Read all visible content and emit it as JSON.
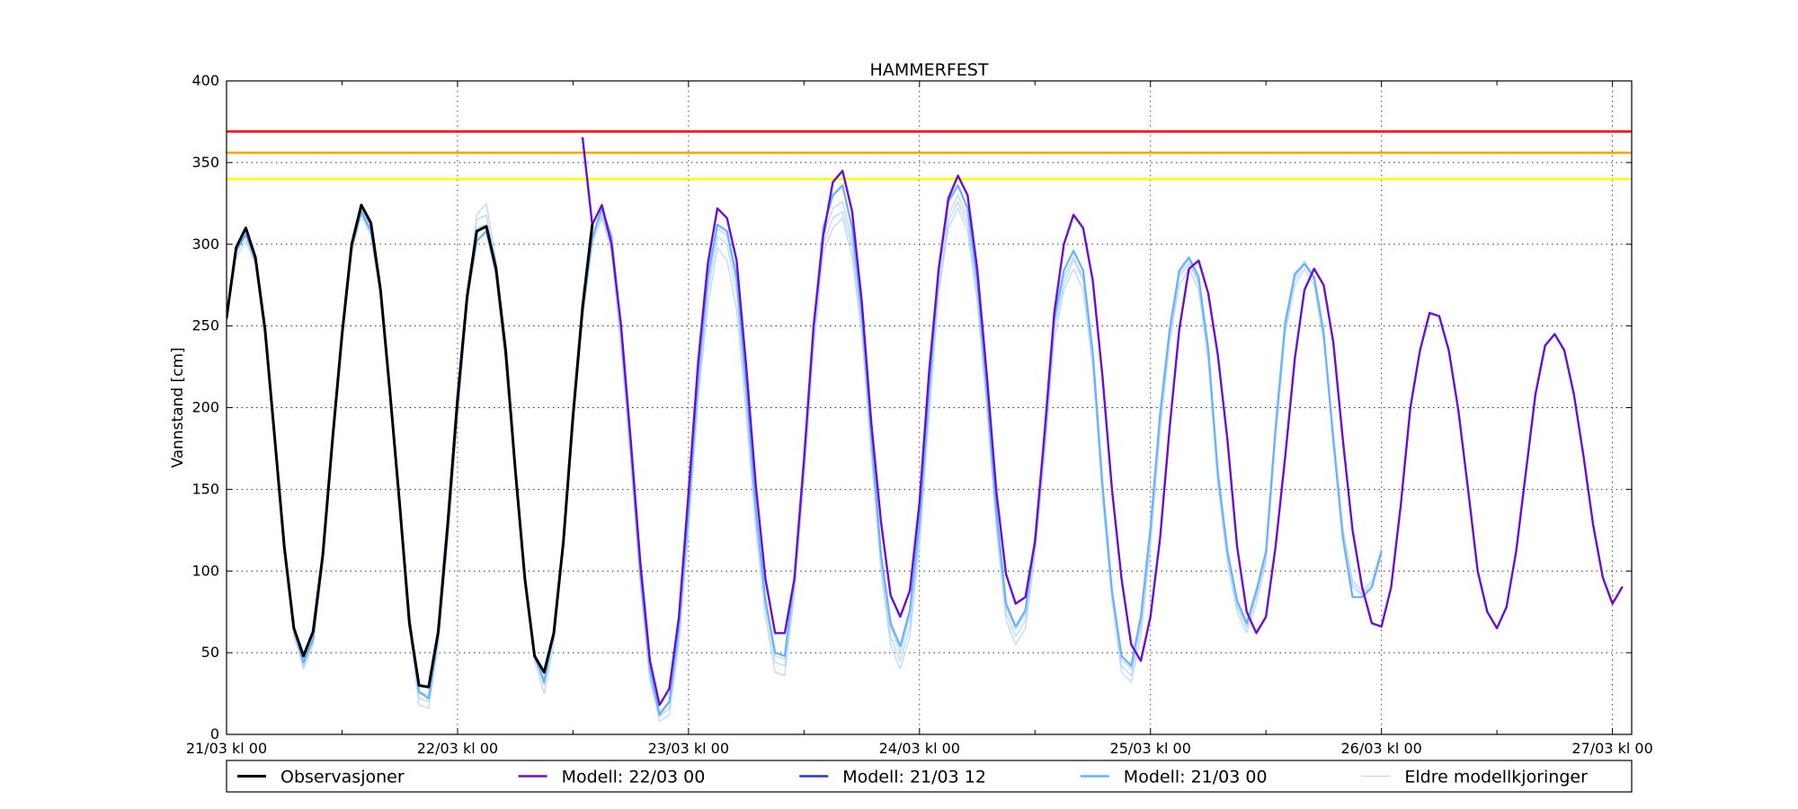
{
  "chart_data": {
    "type": "line",
    "title": "HAMMERFEST",
    "xlabel": "",
    "ylabel": "Vannstand [cm]",
    "ylim": [
      0,
      400
    ],
    "xlim_hours": [
      0,
      146
    ],
    "y_ticks": [
      0,
      50,
      100,
      150,
      200,
      250,
      300,
      350,
      400
    ],
    "x_ticks": [
      {
        "hour": 0,
        "label": "21/03 kl 00"
      },
      {
        "hour": 24,
        "label": "22/03 kl 00"
      },
      {
        "hour": 48,
        "label": "23/03 kl 00"
      },
      {
        "hour": 72,
        "label": "24/03 kl 00"
      },
      {
        "hour": 96,
        "label": "25/03 kl 00"
      },
      {
        "hour": 120,
        "label": "26/03 kl 00"
      },
      {
        "hour": 144,
        "label": "27/03 kl 00"
      }
    ],
    "x_minor_ticks_hours": [
      12,
      36,
      60,
      84,
      108,
      132
    ],
    "grid": true,
    "legend_position": "bottom",
    "thresholds": [
      {
        "value": 369,
        "color": "#ff0000"
      },
      {
        "value": 356,
        "color": "#ffa500"
      },
      {
        "value": 340,
        "color": "#ffff00"
      }
    ],
    "series": [
      {
        "name": "Eldre modellkjoringer",
        "color": "#bbd8f8",
        "width": 1.3,
        "x_start": 0,
        "x_step": 1,
        "values": [
          258,
          295,
          305,
          290,
          245,
          180,
          112,
          62,
          40,
          55,
          105,
          175,
          240,
          295,
          318,
          305,
          268,
          205,
          135,
          65,
          18,
          16,
          55,
          120,
          195,
          262,
          318,
          325,
          290,
          235,
          165,
          98,
          45,
          25,
          55,
          115,
          190,
          255,
          300,
          318,
          300,
          240,
          170,
          95,
          35,
          8,
          12,
          55,
          125,
          205,
          262,
          298,
          290,
          260,
          195,
          125,
          72,
          38,
          36,
          85,
          155,
          235,
          295,
          310,
          316,
          292,
          245,
          170,
          100,
          55,
          40,
          60,
          115,
          195,
          270,
          310,
          322,
          308,
          265,
          200,
          125,
          70,
          55,
          65,
          110,
          170,
          242,
          272,
          285,
          272,
          225,
          145,
          82,
          38,
          32,
          60,
          115,
          185,
          240,
          275,
          285,
          272,
          228,
          152,
          105,
          75,
          62,
          80,
          105,
          180,
          245,
          275,
          285,
          275,
          240,
          180,
          120,
          90,
          85,
          90,
          110,
          null,
          null,
          null,
          null,
          null,
          null,
          null,
          null,
          null,
          null,
          null,
          null,
          null,
          null,
          null,
          null,
          null,
          null,
          null,
          null,
          null,
          null,
          null,
          null,
          null,
          null
        ]
      },
      {
        "name": "Eldre modellkjoringer",
        "color": "#bbd8f8",
        "width": 1.3,
        "x_start": 0,
        "x_step": 1,
        "values": [
          255,
          292,
          302,
          288,
          243,
          178,
          110,
          60,
          42,
          58,
          108,
          178,
          243,
          298,
          320,
          308,
          270,
          207,
          138,
          70,
          22,
          20,
          58,
          123,
          198,
          266,
          315,
          318,
          286,
          232,
          163,
          96,
          48,
          30,
          60,
          118,
          192,
          258,
          302,
          316,
          296,
          236,
          166,
          92,
          32,
          11,
          16,
          60,
          130,
          210,
          270,
          305,
          300,
          270,
          205,
          132,
          78,
          44,
          42,
          90,
          160,
          240,
          300,
          316,
          320,
          298,
          250,
          176,
          104,
          60,
          45,
          66,
          122,
          200,
          274,
          314,
          326,
          312,
          270,
          204,
          130,
          74,
          60,
          70,
          115,
          176,
          248,
          276,
          290,
          278,
          230,
          150,
          86,
          42,
          36,
          66,
          120,
          190,
          244,
          280,
          288,
          276,
          232,
          156,
          108,
          78,
          65,
          84,
          108,
          184,
          248,
          278,
          288,
          278,
          244,
          184,
          124,
          92,
          86,
          92,
          112,
          null,
          null,
          null,
          null,
          null,
          null,
          null,
          null,
          null,
          null,
          null,
          null,
          null,
          null,
          null,
          null,
          null,
          null,
          null,
          null,
          null,
          null,
          null,
          null,
          null,
          null
        ]
      },
      {
        "name": "Eldre modellkjoringer",
        "color": "#bbd8f8",
        "width": 1.3,
        "x_start": 0,
        "x_step": 1,
        "values": [
          252,
          298,
          308,
          292,
          248,
          182,
          114,
          64,
          46,
          60,
          110,
          180,
          246,
          300,
          322,
          310,
          272,
          210,
          140,
          72,
          26,
          24,
          62,
          126,
          200,
          268,
          310,
          312,
          282,
          230,
          162,
          95,
          50,
          34,
          64,
          120,
          195,
          260,
          304,
          320,
          300,
          240,
          170,
          96,
          36,
          14,
          20,
          64,
          134,
          214,
          275,
          310,
          305,
          276,
          210,
          136,
          80,
          48,
          46,
          94,
          165,
          245,
          305,
          322,
          326,
          302,
          254,
          180,
          108,
          66,
          50,
          72,
          128,
          205,
          280,
          318,
          330,
          316,
          274,
          208,
          134,
          78,
          64,
          74,
          118,
          180,
          252,
          280,
          292,
          280,
          232,
          152,
          88,
          46,
          40,
          70,
          124,
          194,
          246,
          282,
          290,
          278,
          234,
          158,
          110,
          80,
          67,
          86,
          110,
          186,
          250,
          280,
          290,
          280,
          246,
          186,
          126,
          94,
          88,
          94,
          114,
          null,
          null,
          null,
          null,
          null,
          null,
          null,
          null,
          null,
          null,
          null,
          null,
          null,
          null,
          null,
          null,
          null,
          null,
          null,
          null,
          null,
          null,
          null,
          null,
          null,
          null
        ]
      },
      {
        "name": "Modell: 21/03 00",
        "color": "#66b2ff",
        "width": 2.2,
        "x_start": 0,
        "x_step": 1,
        "values": [
          255,
          296,
          306,
          290,
          246,
          182,
          114,
          64,
          44,
          58,
          108,
          178,
          244,
          298,
          320,
          308,
          270,
          208,
          140,
          72,
          26,
          22,
          60,
          124,
          198,
          266,
          302,
          308,
          282,
          230,
          162,
          96,
          48,
          32,
          62,
          118,
          192,
          258,
          304,
          322,
          305,
          248,
          176,
          98,
          40,
          12,
          20,
          66,
          136,
          218,
          280,
          312,
          308,
          280,
          212,
          138,
          82,
          50,
          48,
          96,
          168,
          248,
          310,
          330,
          336,
          310,
          258,
          182,
          110,
          68,
          54,
          76,
          130,
          210,
          286,
          326,
          336,
          322,
          278,
          210,
          136,
          80,
          66,
          76,
          120,
          182,
          254,
          284,
          296,
          284,
          234,
          154,
          88,
          48,
          42,
          72,
          126,
          196,
          248,
          284,
          292,
          280,
          236,
          160,
          112,
          82,
          68,
          88,
          112,
          188,
          252,
          282,
          288,
          280,
          246,
          180,
          120,
          84,
          84,
          90,
          112,
          null,
          null,
          null,
          null,
          null,
          null,
          null,
          null,
          null,
          null,
          null,
          null,
          null,
          null,
          null,
          null,
          null,
          null,
          null,
          null,
          null,
          null,
          null,
          null,
          null,
          null
        ]
      },
      {
        "name": "Modell: 21/03 12",
        "color": "#2233ee",
        "width": 2.2,
        "x_start": 12,
        "x_step": 1,
        "values": [
          null,
          null,
          null,
          null,
          null,
          null,
          null,
          null,
          null,
          null,
          null,
          null,
          null,
          null,
          null,
          null,
          null,
          null,
          null,
          null,
          null,
          null,
          null,
          null,
          null,
          null,
          null,
          null,
          null,
          null,
          null,
          null,
          null,
          null,
          null,
          null,
          null,
          null,
          null,
          null,
          null,
          null,
          null,
          null,
          null,
          null,
          null,
          null,
          null,
          null,
          null,
          null,
          null,
          null,
          null,
          null,
          null,
          null,
          null,
          null,
          null,
          null,
          null,
          null,
          null,
          null,
          null,
          null,
          null,
          null,
          null,
          null,
          null,
          null,
          null,
          null,
          null,
          null,
          null,
          null,
          null,
          null,
          null,
          null,
          null,
          null,
          null,
          null,
          null,
          null,
          null,
          null,
          null,
          null,
          null,
          null,
          null,
          null,
          null,
          null,
          null,
          null,
          null,
          null,
          null,
          null,
          null,
          null,
          null,
          null,
          null,
          null,
          null,
          null,
          null,
          null,
          null,
          null,
          null,
          null,
          null,
          null,
          null,
          null,
          null,
          null,
          null,
          null,
          null,
          null,
          null,
          null,
          null,
          null,
          null
        ]
      },
      {
        "name": "Modell: 22/03 00",
        "color": "#6a0dd6",
        "width": 2.4,
        "x_start": 0,
        "x_step": 1,
        "values": [
          null,
          null,
          null,
          null,
          null,
          null,
          null,
          null,
          null,
          null,
          null,
          null,
          null,
          null,
          null,
          null,
          null,
          null,
          null,
          null,
          null,
          null,
          null,
          null,
          null,
          null,
          null,
          null,
          null,
          null,
          null,
          null,
          null,
          null,
          null,
          null,
          null,
          365,
          312,
          324,
          300,
          250,
          180,
          105,
          45,
          18,
          28,
          72,
          148,
          228,
          288,
          322,
          316,
          290,
          225,
          152,
          95,
          62,
          62,
          95,
          168,
          250,
          305,
          338,
          345,
          320,
          265,
          190,
          130,
          85,
          72,
          88,
          142,
          222,
          285,
          328,
          342,
          330,
          285,
          220,
          148,
          98,
          80,
          84,
          118,
          185,
          258,
          300,
          318,
          310,
          278,
          220,
          150,
          95,
          55,
          45,
          72,
          120,
          188,
          248,
          285,
          290,
          270,
          232,
          180,
          115,
          75,
          62,
          72,
          115,
          170,
          230,
          272,
          285,
          275,
          240,
          180,
          125,
          90,
          68,
          66,
          90,
          140,
          200,
          235,
          258,
          256,
          235,
          198,
          150,
          100,
          75,
          65,
          78,
          112,
          160,
          208,
          238,
          245,
          235,
          208,
          170,
          128,
          96,
          80,
          90
        ]
      },
      {
        "name": "Observasjoner",
        "color": "#000000",
        "width": 3,
        "x_start": 0,
        "x_step": 1,
        "values": [
          255,
          298,
          310,
          292,
          248,
          182,
          115,
          65,
          48,
          63,
          110,
          180,
          245,
          300,
          324,
          313,
          272,
          208,
          140,
          68,
          30,
          29,
          63,
          130,
          205,
          268,
          308,
          311,
          285,
          235,
          162,
          95,
          48,
          38,
          62,
          118,
          195,
          262,
          312,
          null,
          null,
          null,
          null,
          null,
          null,
          null,
          null,
          null,
          null,
          null,
          null,
          null,
          null,
          null,
          null,
          null,
          null,
          null,
          null,
          null,
          null,
          null,
          null,
          null,
          null,
          null,
          null,
          null,
          null,
          null,
          null,
          null,
          null,
          null,
          null,
          null,
          null,
          null,
          null,
          null,
          null,
          null,
          null,
          null,
          null,
          null,
          null,
          null,
          null,
          null,
          null,
          null,
          null,
          null,
          null,
          null,
          null,
          null,
          null,
          null,
          null,
          null,
          null,
          null,
          null,
          null,
          null,
          null,
          null,
          null,
          null,
          null,
          null,
          null,
          null,
          null,
          null,
          null,
          null,
          null,
          null,
          null,
          null,
          null,
          null,
          null,
          null,
          null,
          null,
          null,
          null,
          null,
          null,
          null,
          null,
          null,
          null,
          null,
          null,
          null,
          null,
          null,
          null,
          null,
          null,
          null,
          null,
          null,
          null,
          null,
          null,
          null,
          null
        ]
      }
    ],
    "legend": [
      {
        "label": "Observasjoner",
        "color": "#000000",
        "width": 3
      },
      {
        "label": "Modell: 22/03 00",
        "color": "#6a0dd6",
        "width": 2.4
      },
      {
        "label": "Modell: 21/03 12",
        "color": "#2233ee",
        "width": 2.4
      },
      {
        "label": "Modell: 21/03 00",
        "color": "#66b2ff",
        "width": 2.4
      },
      {
        "label": "Eldre modellkjoringer",
        "color": "#bbd8f8",
        "width": 1.3
      }
    ]
  }
}
